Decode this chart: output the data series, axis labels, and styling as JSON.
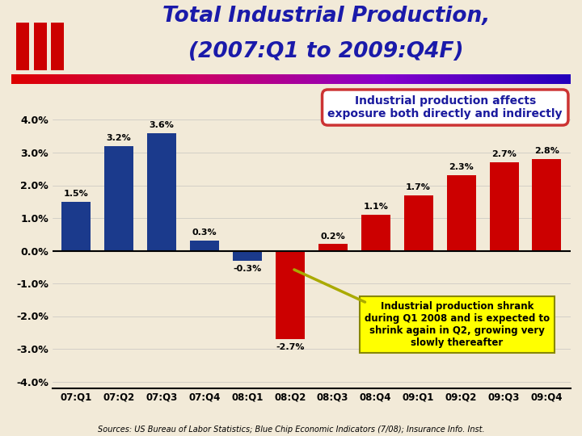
{
  "categories": [
    "07:Q1",
    "07:Q2",
    "07:Q3",
    "07:Q4",
    "08:Q1",
    "08:Q2",
    "08:Q3",
    "08:Q4",
    "09:Q1",
    "09:Q2",
    "09:Q3",
    "09:Q4"
  ],
  "values": [
    1.5,
    3.2,
    3.6,
    0.3,
    -0.3,
    -2.7,
    0.2,
    1.1,
    1.7,
    2.3,
    2.7,
    2.8
  ],
  "blue_indices": [
    0,
    1,
    2,
    3,
    4
  ],
  "red_indices": [
    5,
    6,
    7,
    8,
    9,
    10,
    11
  ],
  "blue_color": "#1b3a8c",
  "red_color": "#cc0000",
  "title_line1": "Total Industrial Production,",
  "title_line2": "(2007:Q1 to 2009:Q4F)",
  "ylim": [
    -4.2,
    4.8
  ],
  "yticks": [
    -4.0,
    -3.0,
    -2.0,
    -1.0,
    0.0,
    1.0,
    2.0,
    3.0,
    4.0
  ],
  "yticklabels": [
    "-4.0%",
    "-3.0%",
    "-2.0%",
    "-1.0%",
    "0.0%",
    "1.0%",
    "2.0%",
    "3.0%",
    "4.0%"
  ],
  "bg_color": "#f2ead8",
  "title_color": "#1a1aaa",
  "annotation_box_text": "Industrial production affects\nexposure both directly and indirectly",
  "annotation_box2_text": "Industrial production shrank\nduring Q1 2008 and is expected to\nshrink again in Q2, growing very\nslowly thereafter",
  "sources_text": "Sources: US Bureau of Labor Statistics; Blue Chip Economic Indicators (7/08); Insurance Info. Inst.",
  "label_values": [
    "1.5%",
    "3.2%",
    "3.6%",
    "0.3%",
    "-0.3%",
    "-2.7%",
    "0.2%",
    "1.1%",
    "1.7%",
    "2.3%",
    "2.7%",
    "2.8%"
  ],
  "label_offsets": [
    0.12,
    0.12,
    0.12,
    0.12,
    -0.12,
    -0.12,
    0.12,
    0.12,
    0.12,
    0.12,
    0.12,
    0.12
  ]
}
